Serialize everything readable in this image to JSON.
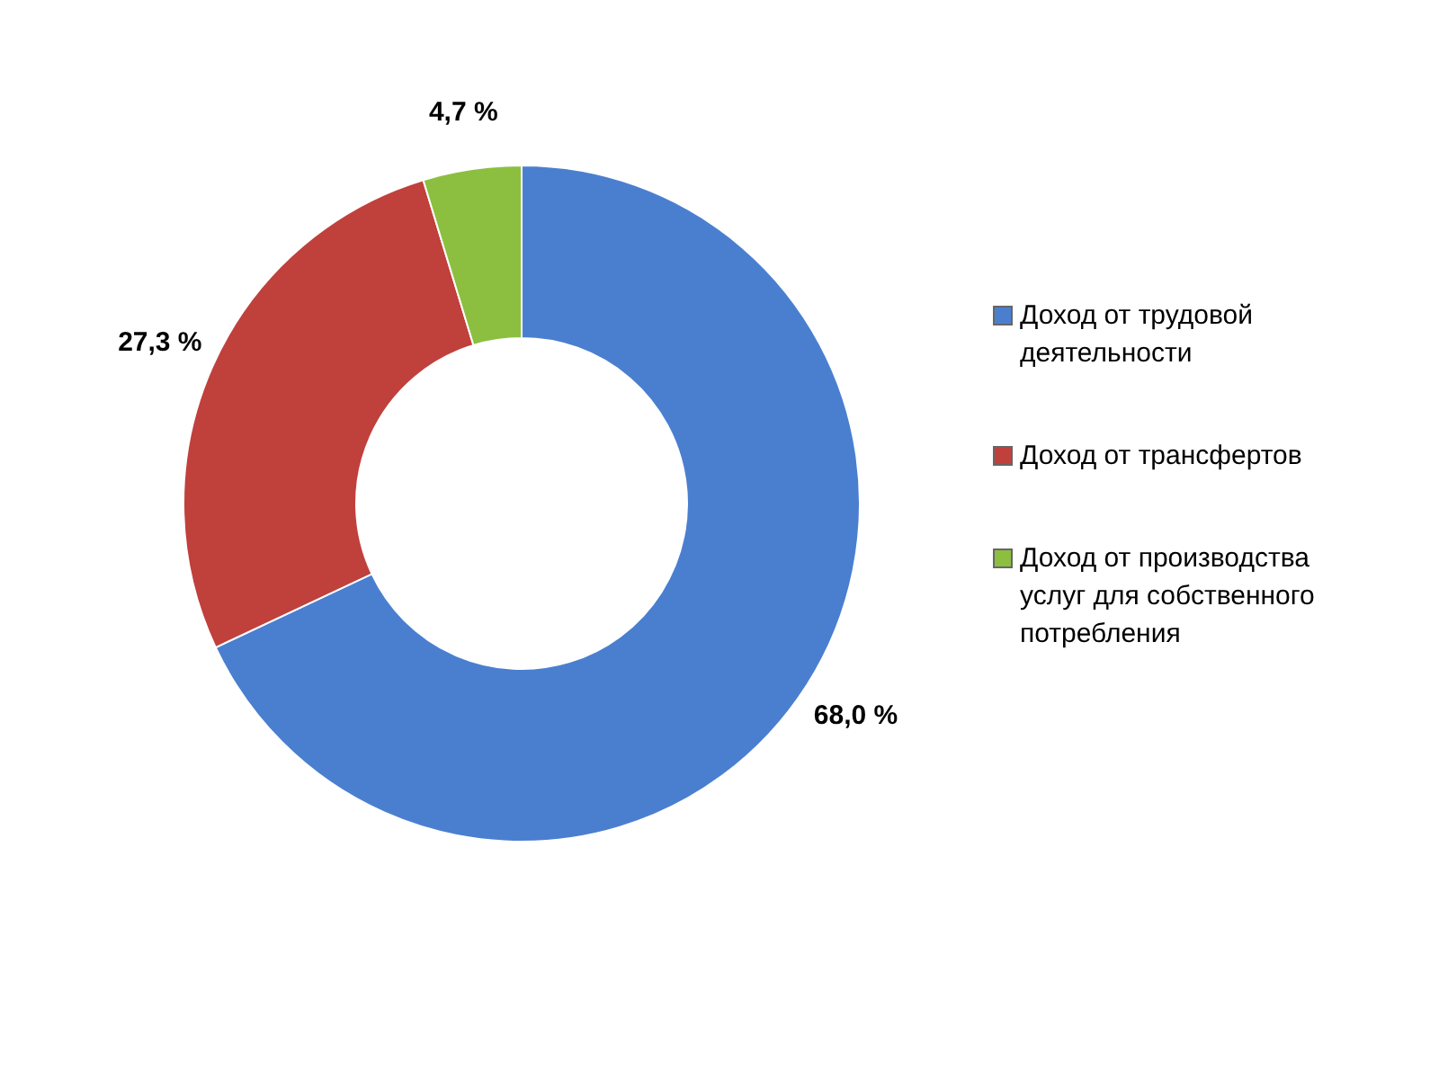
{
  "chart_data": {
    "type": "donut",
    "categories": [
      "Доход от трудовой деятельности",
      "Доход от трансфертов",
      "Доход от производства услуг для собственного потребления"
    ],
    "values": [
      68.0,
      27.3,
      4.7
    ],
    "colors": [
      "#4a7fd0",
      "#c0403c",
      "#8cbf3f"
    ],
    "value_labels": [
      "68,0 %",
      "27,3 %",
      "4,7 %"
    ],
    "legend": "right"
  }
}
